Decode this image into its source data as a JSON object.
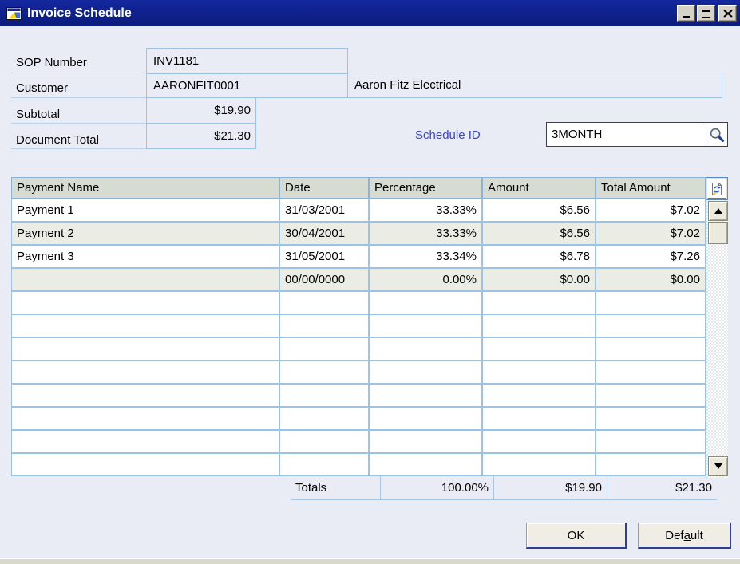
{
  "window": {
    "title": "Invoice Schedule"
  },
  "fields": {
    "sop_number_label": "SOP Number",
    "sop_number_value": "INV1181",
    "customer_label": "Customer",
    "customer_id": "AARONFIT0001",
    "customer_name": "Aaron Fitz Electrical",
    "subtotal_label": "Subtotal",
    "subtotal_value": "$19.90",
    "document_total_label": "Document Total",
    "document_total_value": "$21.30",
    "schedule_id_label": "Schedule ID",
    "schedule_id_value": "3MONTH"
  },
  "table": {
    "columns": [
      "Payment Name",
      "Date",
      "Percentage",
      "Amount",
      "Total Amount"
    ],
    "visible_rows": 12,
    "rows": [
      {
        "name": "Payment 1",
        "date": "31/03/2001",
        "percentage": "33.33%",
        "amount": "$6.56",
        "total": "$7.02"
      },
      {
        "name": "Payment 2",
        "date": "30/04/2001",
        "percentage": "33.33%",
        "amount": "$6.56",
        "total": "$7.02"
      },
      {
        "name": "Payment 3",
        "date": "31/05/2001",
        "percentage": "33.34%",
        "amount": "$6.78",
        "total": "$7.26"
      },
      {
        "name": "",
        "date": "00/00/0000",
        "percentage": "0.00%",
        "amount": "$0.00",
        "total": "$0.00"
      }
    ],
    "totals": {
      "label": "Totals",
      "percentage": "100.00%",
      "amount": "$19.90",
      "total": "$21.30"
    }
  },
  "buttons": {
    "ok": "OK",
    "default_pre": "Def",
    "default_key": "a",
    "default_post": "ult"
  },
  "colors": {
    "titlebar": "#0e2191",
    "link": "#3946c8",
    "grid_border": "#9cc2e4",
    "header_bg": "#d6dcd2",
    "alt_row": "#ebece3",
    "dialog_bg": "#e9ebf5"
  }
}
